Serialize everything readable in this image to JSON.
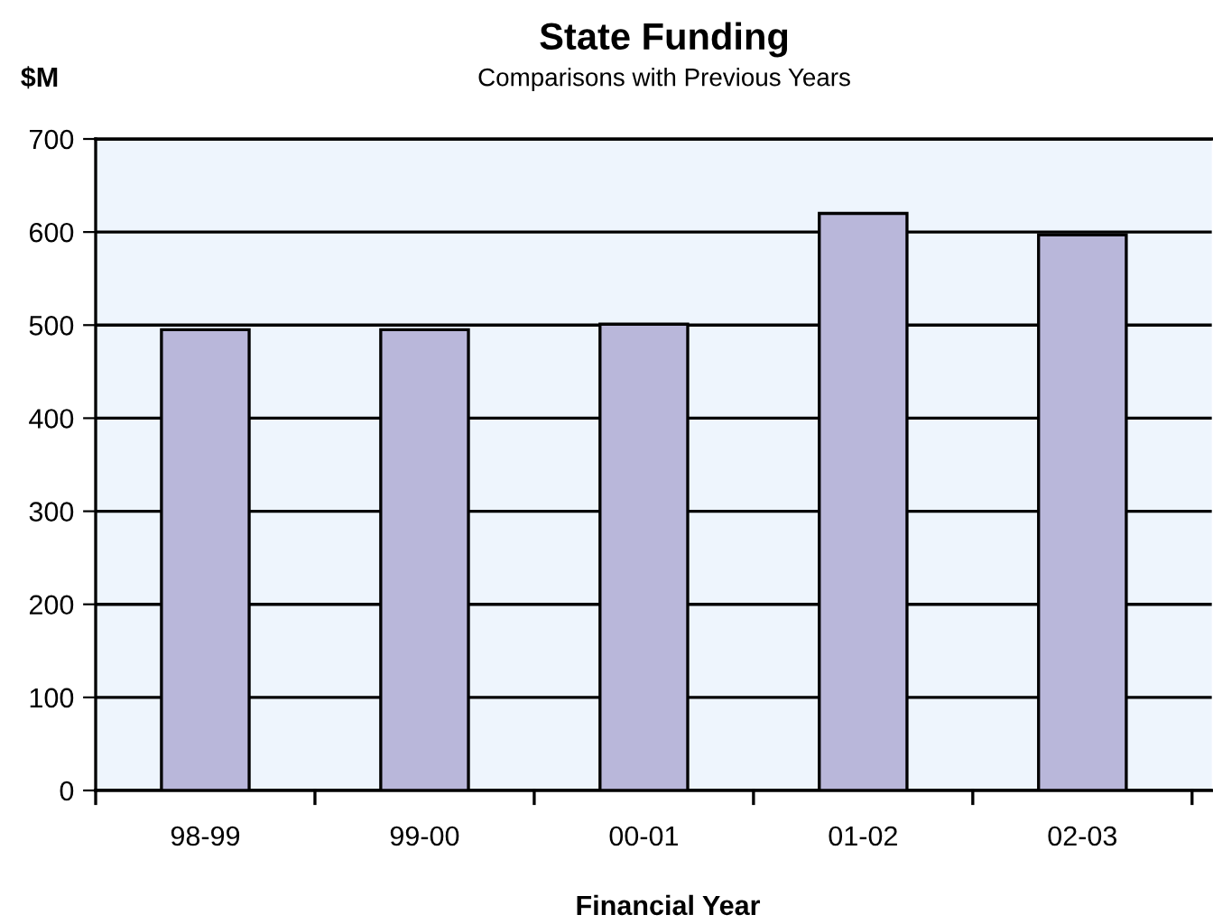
{
  "chart_data": {
    "type": "bar",
    "title": "State Funding",
    "subtitle": "Comparisons with Previous Years",
    "xlabel": "Financial Year",
    "ylabel": "$M",
    "categories": [
      "98-99",
      "99-00",
      "00-01",
      "01-02",
      "02-03"
    ],
    "values": [
      495,
      495,
      501,
      620,
      597
    ],
    "color": "#b9b7da",
    "ylim": [
      0,
      700
    ],
    "yticks": [
      0,
      100,
      200,
      300,
      400,
      500,
      600,
      700
    ],
    "grid": "y",
    "legend": false
  }
}
